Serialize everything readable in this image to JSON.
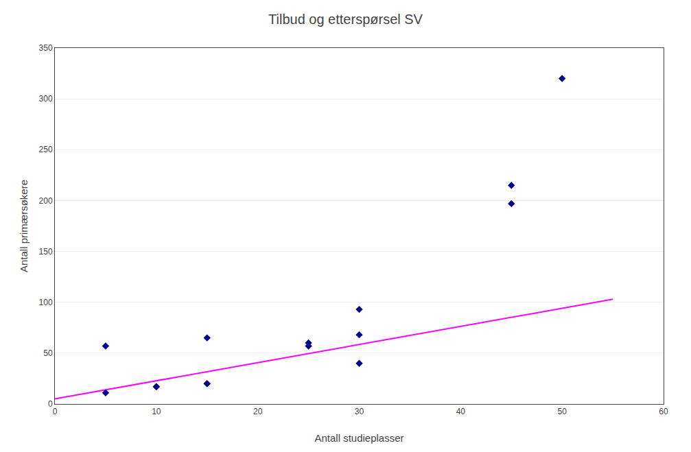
{
  "chart_data": {
    "type": "scatter",
    "title": "Tilbud og etterspørsel SV",
    "xlabel": "Antall studieplasser",
    "ylabel": "Antall primærsøkere",
    "series": [
      {
        "type": "line",
        "color": "#FF00FF",
        "line_style": "solid",
        "x": [
          0,
          55
        ],
        "values": [
          5,
          103
        ]
      },
      {
        "type": "scatter",
        "color": "#00008B",
        "marker": "diamond",
        "x": [
          5,
          5,
          10,
          10,
          15,
          15,
          15,
          25,
          25,
          30,
          30,
          30,
          45,
          45,
          50
        ],
        "values": [
          57,
          11,
          17,
          17,
          65,
          20,
          20,
          60,
          57,
          93,
          68,
          40,
          215,
          197,
          320
        ]
      }
    ],
    "xlim": [
      0,
      60
    ],
    "ylim": [
      0,
      350
    ],
    "xticks": [
      0,
      10,
      20,
      30,
      40,
      50,
      60
    ],
    "yticks": [
      0,
      50,
      100,
      150,
      200,
      250,
      300,
      350
    ],
    "grid": "y"
  }
}
